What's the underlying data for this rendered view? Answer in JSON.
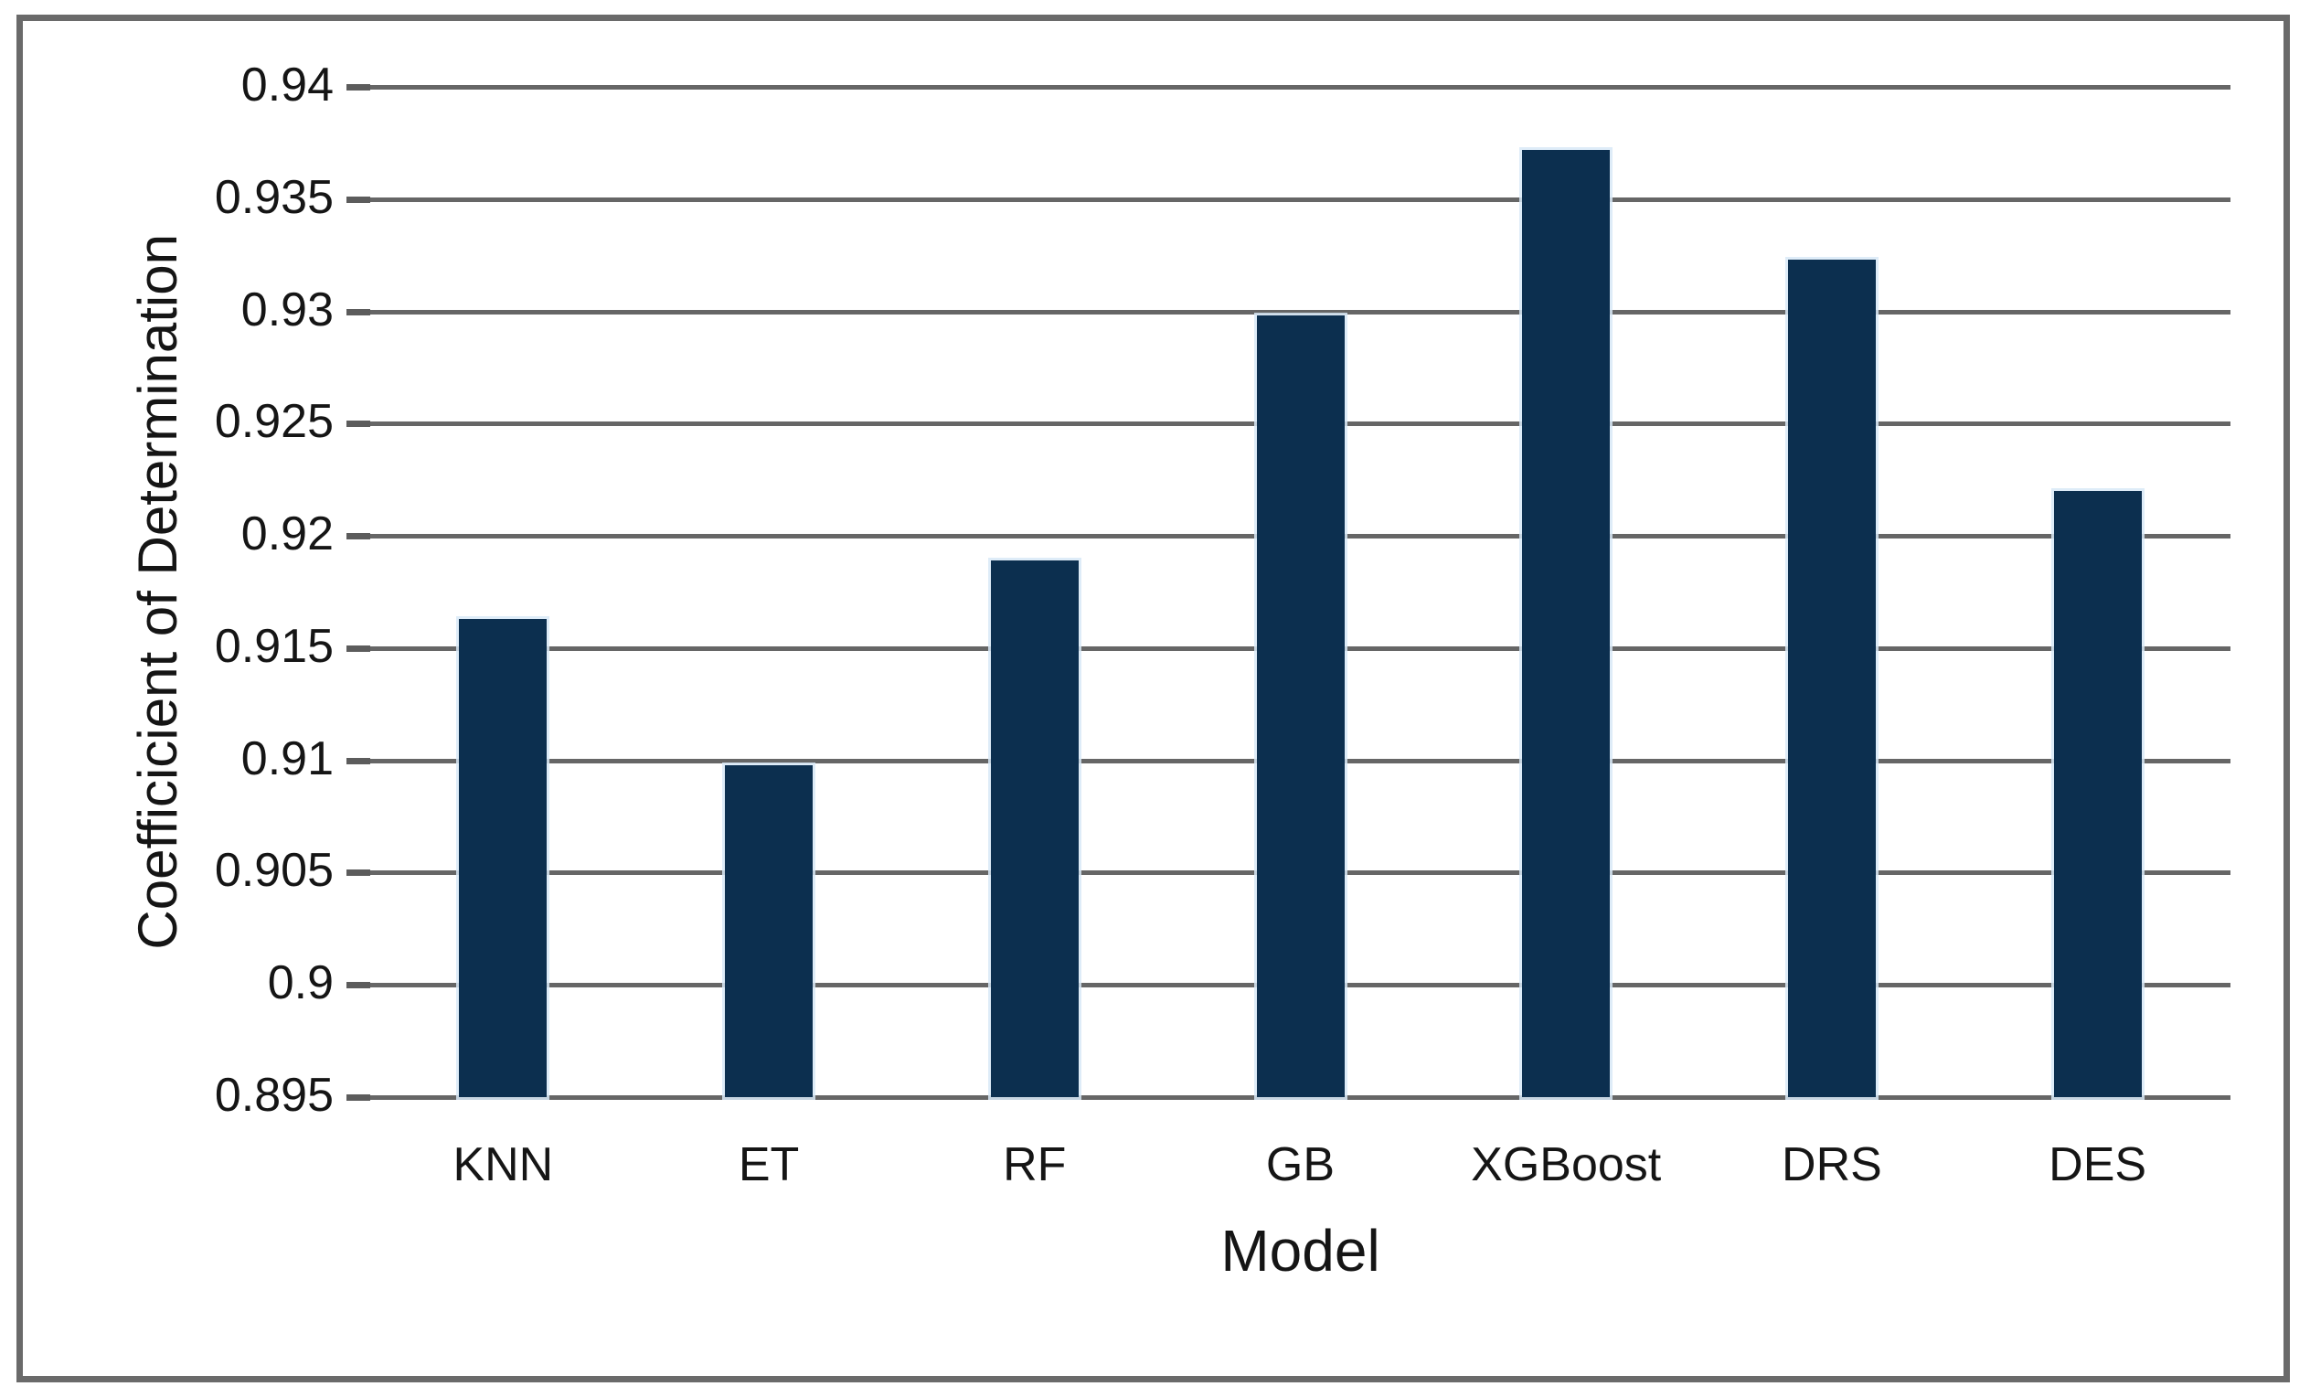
{
  "figure": {
    "background": "#ffffff",
    "border_color": "#6a6a6a"
  },
  "chart_data": {
    "type": "bar",
    "title": "",
    "categories": [
      "KNN",
      "ET",
      "RF",
      "GB",
      "XGBoost",
      "DRS",
      "DES"
    ],
    "values": [
      0.9163,
      0.9098,
      0.9189,
      0.9298,
      0.9372,
      0.9323,
      0.922
    ],
    "xlabel": "Model",
    "ylabel": "Coefficicient of Determination",
    "ylim": [
      0.895,
      0.94
    ],
    "ytick_step": 0.005,
    "ytick_labels": [
      "0.94",
      "0.935",
      "0.93",
      "0.925",
      "0.92",
      "0.915",
      "0.91",
      "0.905",
      "0.9",
      "0.895"
    ],
    "grid": "horizontal",
    "legend": "none",
    "bar_color": "#0c2f4f",
    "gridline_color": "#666666",
    "text_color": "#151515"
  }
}
